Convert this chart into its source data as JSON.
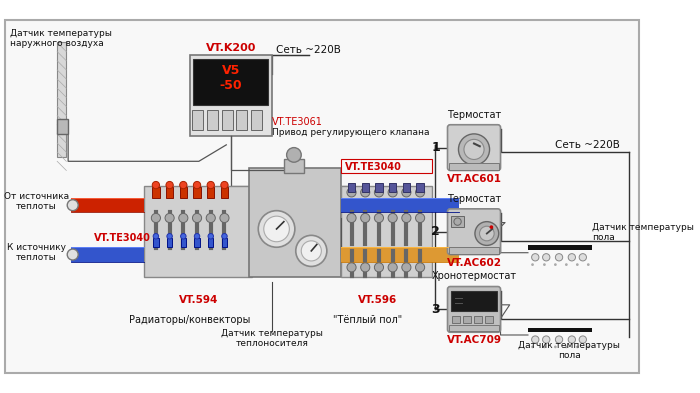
{
  "bg_color": "#ffffff",
  "border_color": "#aaaaaa",
  "labels": {
    "outdoor_sensor": "Датчик температуры\nнаружного воздуха",
    "vt_k200": "VT.K200",
    "net_220v_top": "Сеть ~220В",
    "net_220v_right": "Сеть ~220В",
    "vt_te3061": "VT.TE3061",
    "drive_label": "Привод регулирующего клапана",
    "vt_te3040_left": "VT.TE3040",
    "vt_te3040_right": "VT.TE3040",
    "from_source": "От источника\nтеплоты",
    "to_source": "К источнику\nтеплоты",
    "vt_594": "VT.594",
    "vt_596": "VT.596",
    "radiators": "Радиаторы/конвекторы",
    "warm_floor": "\"Тёплый пол\"",
    "coolant_sensor": "Датчик температуры\nтеплоносителя",
    "thermostat1": "Термостат",
    "thermostat2": "Термостат",
    "chronothermostat": "Хронотермостат",
    "vt_ac601": "VT.AC601",
    "vt_ac602": "VT.AC602",
    "vt_ac709": "VT.AC709",
    "floor_sensor1": "Датчик температуры\nпола",
    "floor_sensor2": "Датчик температуры\nпола",
    "num1": "1",
    "num2": "2",
    "num3": "3"
  },
  "colors": {
    "red_label": "#cc0000",
    "black_text": "#111111",
    "dark_gray": "#444444",
    "pipe_red": "#cc2200",
    "pipe_blue": "#3355cc",
    "pipe_orange": "#dd9933",
    "device_bg": "#d0d0d0",
    "device_border": "#888888",
    "controller_bg": "#1a1a1a",
    "wire_color": "#555555",
    "line_color": "#333333",
    "manifold_bg": "#c8c8c8"
  }
}
